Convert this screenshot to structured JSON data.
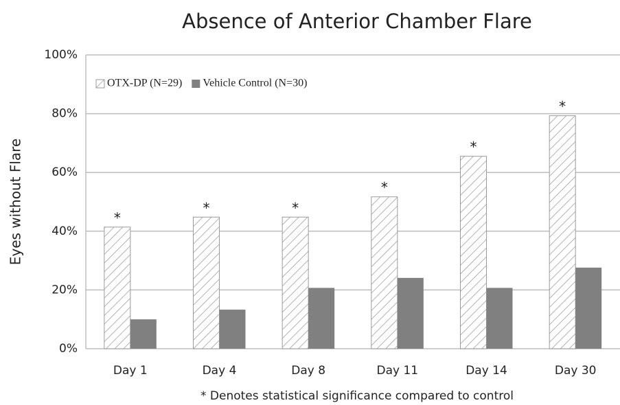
{
  "chart_data": {
    "type": "bar",
    "title": "Absence of Anterior Chamber Flare",
    "ylabel": "Eyes without Flare",
    "footnote": "* Denotes statistical significance compared to control",
    "categories": [
      "Day 1",
      "Day 4",
      "Day 8",
      "Day 11",
      "Day 14",
      "Day 30"
    ],
    "series": [
      {
        "name": "OTX-DP (N=29)",
        "color": "#9a9a9a",
        "hatch": true,
        "values": [
          41.4,
          44.8,
          44.8,
          51.7,
          65.5,
          79.3
        ],
        "annotations": [
          "*",
          "*",
          "*",
          "*",
          "*",
          "*"
        ]
      },
      {
        "name": "Vehicle Control (N=30)",
        "color": "#808080",
        "hatch": false,
        "values": [
          10.0,
          13.3,
          20.7,
          24.1,
          20.7,
          27.6
        ]
      }
    ],
    "ylim": [
      0,
      100
    ],
    "yticks": [
      {
        "value": 0,
        "label": "0%"
      },
      {
        "value": 20,
        "label": "20%"
      },
      {
        "value": 40,
        "label": "40%"
      },
      {
        "value": 60,
        "label": "60%"
      },
      {
        "value": 80,
        "label": "80%"
      },
      {
        "value": 100,
        "label": "100%"
      }
    ],
    "grid": true,
    "legend": "top-left"
  }
}
